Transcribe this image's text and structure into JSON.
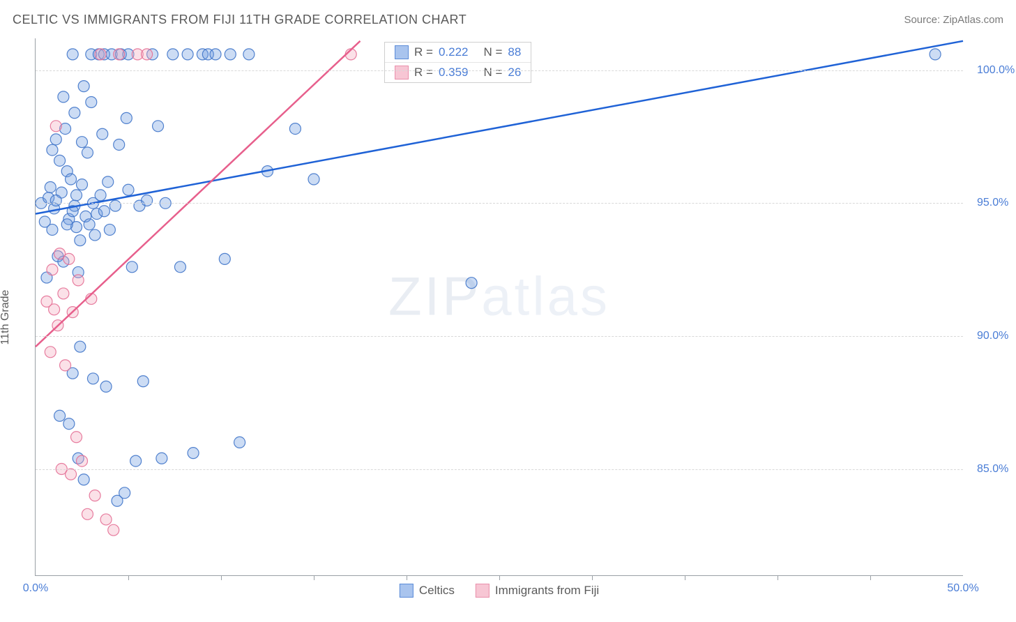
{
  "header": {
    "title": "CELTIC VS IMMIGRANTS FROM FIJI 11TH GRADE CORRELATION CHART",
    "source": "Source: ZipAtlas.com"
  },
  "ylabel": "11th Grade",
  "watermark": {
    "bold": "ZIP",
    "light": "atlas"
  },
  "chart": {
    "type": "scatter",
    "background_color": "#ffffff",
    "grid_color": "#d8d8d8",
    "axis_color": "#9aa0a6",
    "tick_label_color": "#4a7dd6",
    "tick_fontsize": 16,
    "xlim": [
      0,
      50
    ],
    "ylim": [
      81,
      101.2
    ],
    "xticks_major": [
      0,
      50
    ],
    "xticks_minor": [
      5,
      10,
      15,
      20,
      25,
      30,
      35,
      40,
      45
    ],
    "xtick_labels": [
      "0.0%",
      "50.0%"
    ],
    "yticks": [
      85,
      90,
      95,
      100
    ],
    "ytick_labels": [
      "85.0%",
      "90.0%",
      "95.0%",
      "100.0%"
    ],
    "marker_radius": 8,
    "marker_opacity": 0.35,
    "marker_stroke_opacity": 0.9,
    "line_width": 2.5,
    "series": [
      {
        "name": "Celtics",
        "color_fill": "#6d9be0",
        "color_stroke": "#3f74c9",
        "trend": {
          "x1": 0,
          "y1": 94.6,
          "x2": 50,
          "y2": 101.1,
          "color": "#1f62d6"
        },
        "points": [
          [
            0.3,
            95.0
          ],
          [
            0.5,
            94.3
          ],
          [
            0.6,
            92.2
          ],
          [
            0.7,
            95.2
          ],
          [
            0.8,
            95.6
          ],
          [
            0.9,
            94.0
          ],
          [
            1.0,
            94.8
          ],
          [
            1.1,
            97.4
          ],
          [
            1.2,
            93.0
          ],
          [
            1.3,
            96.6
          ],
          [
            1.3,
            87.0
          ],
          [
            1.4,
            95.4
          ],
          [
            1.5,
            99.0
          ],
          [
            1.6,
            97.8
          ],
          [
            1.7,
            96.2
          ],
          [
            1.8,
            94.4
          ],
          [
            1.8,
            86.7
          ],
          [
            1.9,
            95.9
          ],
          [
            2.0,
            88.6
          ],
          [
            2.0,
            100.6
          ],
          [
            2.1,
            94.9
          ],
          [
            2.1,
            98.4
          ],
          [
            2.2,
            94.1
          ],
          [
            2.3,
            92.4
          ],
          [
            2.3,
            85.4
          ],
          [
            2.4,
            93.6
          ],
          [
            2.4,
            89.6
          ],
          [
            2.5,
            95.7
          ],
          [
            2.5,
            97.3
          ],
          [
            2.6,
            99.4
          ],
          [
            2.6,
            84.6
          ],
          [
            2.7,
            94.5
          ],
          [
            2.8,
            96.9
          ],
          [
            2.9,
            94.2
          ],
          [
            3.0,
            98.8
          ],
          [
            3.0,
            100.6
          ],
          [
            3.1,
            95.0
          ],
          [
            3.1,
            88.4
          ],
          [
            3.2,
            93.8
          ],
          [
            3.3,
            94.6
          ],
          [
            3.4,
            100.6
          ],
          [
            3.5,
            95.3
          ],
          [
            3.6,
            97.6
          ],
          [
            3.7,
            94.7
          ],
          [
            3.7,
            100.6
          ],
          [
            3.8,
            88.1
          ],
          [
            3.9,
            95.8
          ],
          [
            4.0,
            94.0
          ],
          [
            4.1,
            100.6
          ],
          [
            4.3,
            94.9
          ],
          [
            4.4,
            83.8
          ],
          [
            4.5,
            97.2
          ],
          [
            4.6,
            100.6
          ],
          [
            4.8,
            84.1
          ],
          [
            4.9,
            98.2
          ],
          [
            5.0,
            95.5
          ],
          [
            5.0,
            100.6
          ],
          [
            5.2,
            92.6
          ],
          [
            5.4,
            85.3
          ],
          [
            5.6,
            94.9
          ],
          [
            5.8,
            88.3
          ],
          [
            6.0,
            95.1
          ],
          [
            6.3,
            100.6
          ],
          [
            6.6,
            97.9
          ],
          [
            6.8,
            85.4
          ],
          [
            7.0,
            95.0
          ],
          [
            7.4,
            100.6
          ],
          [
            7.8,
            92.6
          ],
          [
            8.2,
            100.6
          ],
          [
            8.5,
            85.6
          ],
          [
            9.0,
            100.6
          ],
          [
            9.3,
            100.6
          ],
          [
            9.7,
            100.6
          ],
          [
            10.2,
            92.9
          ],
          [
            10.5,
            100.6
          ],
          [
            11.0,
            86.0
          ],
          [
            11.5,
            100.6
          ],
          [
            12.5,
            96.2
          ],
          [
            14.0,
            97.8
          ],
          [
            15.0,
            95.9
          ],
          [
            23.5,
            92.0
          ],
          [
            48.5,
            100.6
          ],
          [
            2.0,
            94.7
          ],
          [
            2.2,
            95.3
          ],
          [
            1.1,
            95.1
          ],
          [
            1.7,
            94.2
          ],
          [
            0.9,
            97.0
          ],
          [
            1.5,
            92.8
          ]
        ]
      },
      {
        "name": "Immigrants from Fiji",
        "color_fill": "#f4a9bd",
        "color_stroke": "#e46f95",
        "trend": {
          "x1": 0,
          "y1": 89.6,
          "x2": 17.5,
          "y2": 101.1,
          "color": "#e75f8c"
        },
        "points": [
          [
            0.6,
            91.3
          ],
          [
            0.8,
            89.4
          ],
          [
            0.9,
            92.5
          ],
          [
            1.0,
            91.0
          ],
          [
            1.1,
            97.9
          ],
          [
            1.2,
            90.4
          ],
          [
            1.3,
            93.1
          ],
          [
            1.4,
            85.0
          ],
          [
            1.5,
            91.6
          ],
          [
            1.6,
            88.9
          ],
          [
            1.8,
            92.9
          ],
          [
            1.9,
            84.8
          ],
          [
            2.0,
            90.9
          ],
          [
            2.2,
            86.2
          ],
          [
            2.3,
            92.1
          ],
          [
            2.5,
            85.3
          ],
          [
            2.8,
            83.3
          ],
          [
            3.0,
            91.4
          ],
          [
            3.2,
            84.0
          ],
          [
            3.5,
            100.6
          ],
          [
            3.8,
            83.1
          ],
          [
            4.2,
            82.7
          ],
          [
            4.5,
            100.6
          ],
          [
            5.5,
            100.6
          ],
          [
            6.0,
            100.6
          ],
          [
            17.0,
            100.6
          ]
        ]
      }
    ]
  },
  "stat_legend": {
    "rows": [
      {
        "color_fill": "#a9c4ee",
        "color_stroke": "#5b8bd8",
        "r_label": "R =",
        "r_val": "0.222",
        "n_label": "N =",
        "n_val": "88"
      },
      {
        "color_fill": "#f7c6d4",
        "color_stroke": "#e98fab",
        "r_label": "R =",
        "r_val": "0.359",
        "n_label": "N =",
        "n_val": "26"
      }
    ]
  },
  "bottom_legend": {
    "items": [
      {
        "color_fill": "#a9c4ee",
        "color_stroke": "#5b8bd8",
        "label": "Celtics"
      },
      {
        "color_fill": "#f7c6d4",
        "color_stroke": "#e98fab",
        "label": "Immigrants from Fiji"
      }
    ]
  }
}
